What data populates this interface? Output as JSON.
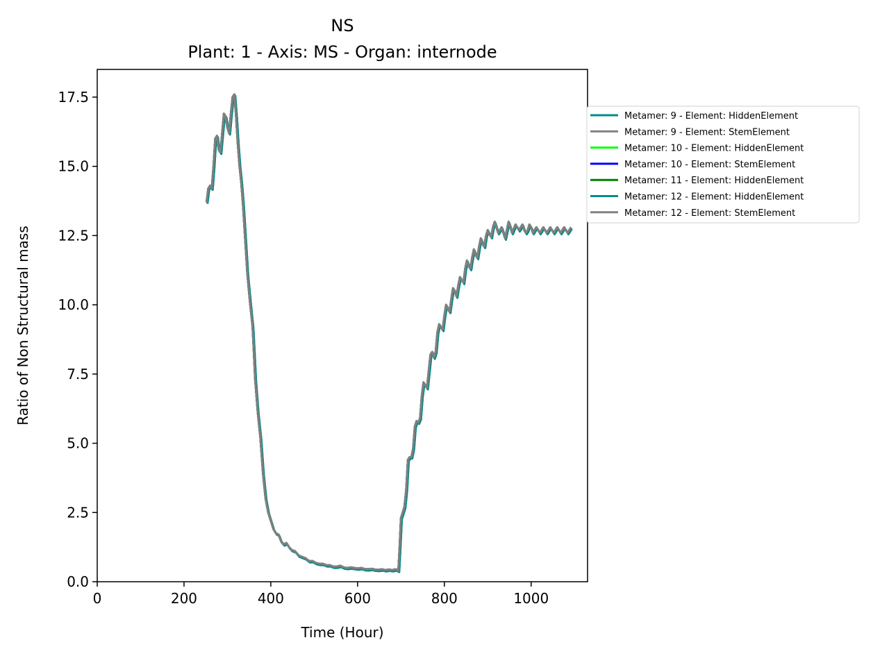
{
  "chart_data": {
    "type": "line",
    "title": "NS",
    "subtitle": "Plant: 1 - Axis: MS - Organ: internode",
    "xlabel": "Time (Hour)",
    "ylabel": "Ratio of Non Structural mass",
    "xlim": [
      0,
      1130
    ],
    "ylim": [
      0,
      18.5
    ],
    "xticks": [
      0,
      200,
      400,
      600,
      800,
      1000
    ],
    "xtick_labels": [
      "0",
      "200",
      "400",
      "600",
      "800",
      "1000"
    ],
    "yticks": [
      0,
      2.5,
      5,
      7.5,
      10,
      12.5,
      15,
      17.5
    ],
    "ytick_labels": [
      "0.0",
      "2.5",
      "5.0",
      "7.5",
      "10.0",
      "12.5",
      "15.0",
      "17.5"
    ],
    "grid": false,
    "legend_position": "right, outside plot",
    "colors": {
      "teal": "#008b8b",
      "gray": "#808080",
      "lime": "#00ff00",
      "blue": "#0000ff",
      "green": "#008000"
    },
    "base_curve": {
      "x": [
        252,
        256,
        260,
        264,
        268,
        272,
        276,
        280,
        284,
        288,
        292,
        296,
        300,
        304,
        308,
        312,
        316,
        320,
        324,
        328,
        332,
        336,
        340,
        346,
        352,
        358,
        364,
        370,
        376,
        382,
        388,
        394,
        400,
        406,
        412,
        418,
        424,
        430,
        436,
        442,
        448,
        456,
        464,
        472,
        480,
        488,
        496,
        504,
        512,
        520,
        528,
        536,
        544,
        552,
        560,
        568,
        576,
        584,
        592,
        600,
        608,
        616,
        624,
        632,
        640,
        648,
        656,
        664,
        672,
        680,
        688,
        694,
        697,
        700,
        704,
        708,
        712,
        716,
        720,
        724,
        728,
        732,
        736,
        740,
        744,
        748,
        752,
        756,
        760,
        764,
        768,
        772,
        776,
        780,
        784,
        788,
        792,
        796,
        800,
        804,
        808,
        812,
        816,
        820,
        824,
        828,
        832,
        836,
        840,
        844,
        848,
        852,
        856,
        860,
        864,
        868,
        872,
        876,
        880,
        884,
        888,
        892,
        896,
        900,
        904,
        908,
        912,
        916,
        920,
        924,
        928,
        932,
        936,
        940,
        944,
        948,
        952,
        956,
        960,
        964,
        968,
        972,
        976,
        980,
        984,
        988,
        992,
        996,
        1000,
        1004,
        1008,
        1012,
        1016,
        1020,
        1024,
        1028,
        1032,
        1036,
        1040,
        1044,
        1048,
        1052,
        1056,
        1060,
        1064,
        1068,
        1072,
        1076,
        1080,
        1084,
        1088,
        1092
      ],
      "y": [
        13.7,
        14.2,
        14.3,
        14.2,
        15.0,
        16.0,
        16.1,
        15.6,
        15.5,
        16.2,
        16.9,
        16.8,
        16.4,
        16.2,
        16.9,
        17.5,
        17.6,
        16.8,
        15.8,
        15.0,
        14.4,
        13.6,
        12.6,
        11.1,
        10.1,
        9.2,
        7.3,
        6.1,
        5.2,
        3.9,
        3.0,
        2.5,
        2.2,
        1.9,
        1.75,
        1.7,
        1.45,
        1.35,
        1.4,
        1.25,
        1.15,
        1.1,
        0.95,
        0.9,
        0.85,
        0.75,
        0.75,
        0.68,
        0.65,
        0.65,
        0.6,
        0.6,
        0.55,
        0.55,
        0.58,
        0.52,
        0.5,
        0.52,
        0.5,
        0.48,
        0.5,
        0.46,
        0.45,
        0.47,
        0.44,
        0.43,
        0.45,
        0.42,
        0.44,
        0.42,
        0.45,
        0.4,
        1.3,
        2.3,
        2.5,
        2.7,
        3.3,
        4.4,
        4.5,
        4.5,
        4.8,
        5.6,
        5.8,
        5.75,
        5.9,
        6.7,
        7.2,
        7.1,
        7.0,
        7.6,
        8.2,
        8.3,
        8.1,
        8.3,
        9.0,
        9.3,
        9.2,
        9.1,
        9.6,
        10.0,
        9.85,
        9.75,
        10.2,
        10.6,
        10.5,
        10.3,
        10.7,
        11.0,
        10.9,
        10.8,
        11.3,
        11.6,
        11.4,
        11.3,
        11.7,
        12.0,
        11.8,
        11.7,
        12.1,
        12.4,
        12.2,
        12.1,
        12.5,
        12.7,
        12.55,
        12.45,
        12.8,
        13.0,
        12.8,
        12.6,
        12.7,
        12.8,
        12.6,
        12.4,
        12.7,
        13.0,
        12.8,
        12.6,
        12.75,
        12.9,
        12.8,
        12.7,
        12.8,
        12.9,
        12.7,
        12.6,
        12.7,
        12.9,
        12.8,
        12.6,
        12.7,
        12.8,
        12.7,
        12.6,
        12.7,
        12.8,
        12.7,
        12.6,
        12.7,
        12.8,
        12.7,
        12.6,
        12.7,
        12.8,
        12.7,
        12.6,
        12.7,
        12.8,
        12.7,
        12.6,
        12.7,
        12.8
      ]
    },
    "series": [
      {
        "name": "Metamer: 9 - Element: HiddenElement",
        "color": "#008b8b",
        "y_offset": -0.05,
        "x_shift": 2
      },
      {
        "name": "Metamer: 9 - Element: StemElement",
        "color": "#808080",
        "y_offset": 0.0,
        "x_shift": 0
      },
      {
        "name": "Metamer: 10 - Element: HiddenElement",
        "color": "#00ff00",
        "y_offset": 0.0,
        "x_shift": 0
      },
      {
        "name": "Metamer: 10 - Element: StemElement",
        "color": "#0000ff",
        "y_offset": 0.0,
        "x_shift": 0
      },
      {
        "name": "Metamer: 11 - Element: HiddenElement",
        "color": "#008000",
        "y_offset": 0.0,
        "x_shift": 0
      },
      {
        "name": "Metamer: 12 - Element: HiddenElement",
        "color": "#008b8b",
        "y_offset": -0.05,
        "x_shift": 2
      },
      {
        "name": "Metamer: 12 - Element: StemElement",
        "color": "#808080",
        "y_offset": 0.0,
        "x_shift": 0
      }
    ],
    "draw_order": [
      0,
      5,
      2,
      3,
      4,
      1,
      6
    ]
  }
}
